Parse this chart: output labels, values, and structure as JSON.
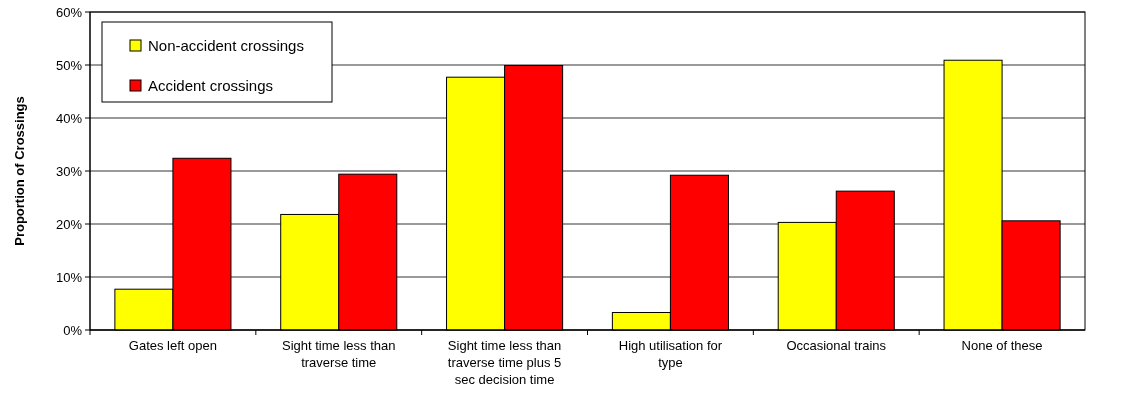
{
  "chart_data": {
    "type": "bar",
    "ylabel": "Proportion of Crossings",
    "categories": [
      "Gates left open",
      "Sight time less than traverse time",
      "Sight time less than traverse time plus 5 sec decision time",
      "High utilisation for type",
      "Occasional trains",
      "None of these"
    ],
    "series": [
      {
        "name": "Non-accident crossings",
        "color": "#ffff00",
        "values": [
          7.7,
          21.8,
          47.7,
          3.3,
          20.3,
          50.9
        ]
      },
      {
        "name": "Accident crossings",
        "color": "#ff0000",
        "values": [
          32.4,
          29.4,
          49.9,
          29.2,
          26.2,
          20.6
        ]
      }
    ],
    "ylim": [
      0,
      60
    ],
    "yticks": [
      {
        "value": 0,
        "label": "0%"
      },
      {
        "value": 10,
        "label": "10%"
      },
      {
        "value": 20,
        "label": "20%"
      },
      {
        "value": 30,
        "label": "30%"
      },
      {
        "value": 40,
        "label": "40%"
      },
      {
        "value": 50,
        "label": "50%"
      },
      {
        "value": 60,
        "label": "60%"
      }
    ],
    "grid": "y",
    "legend": "top left"
  }
}
